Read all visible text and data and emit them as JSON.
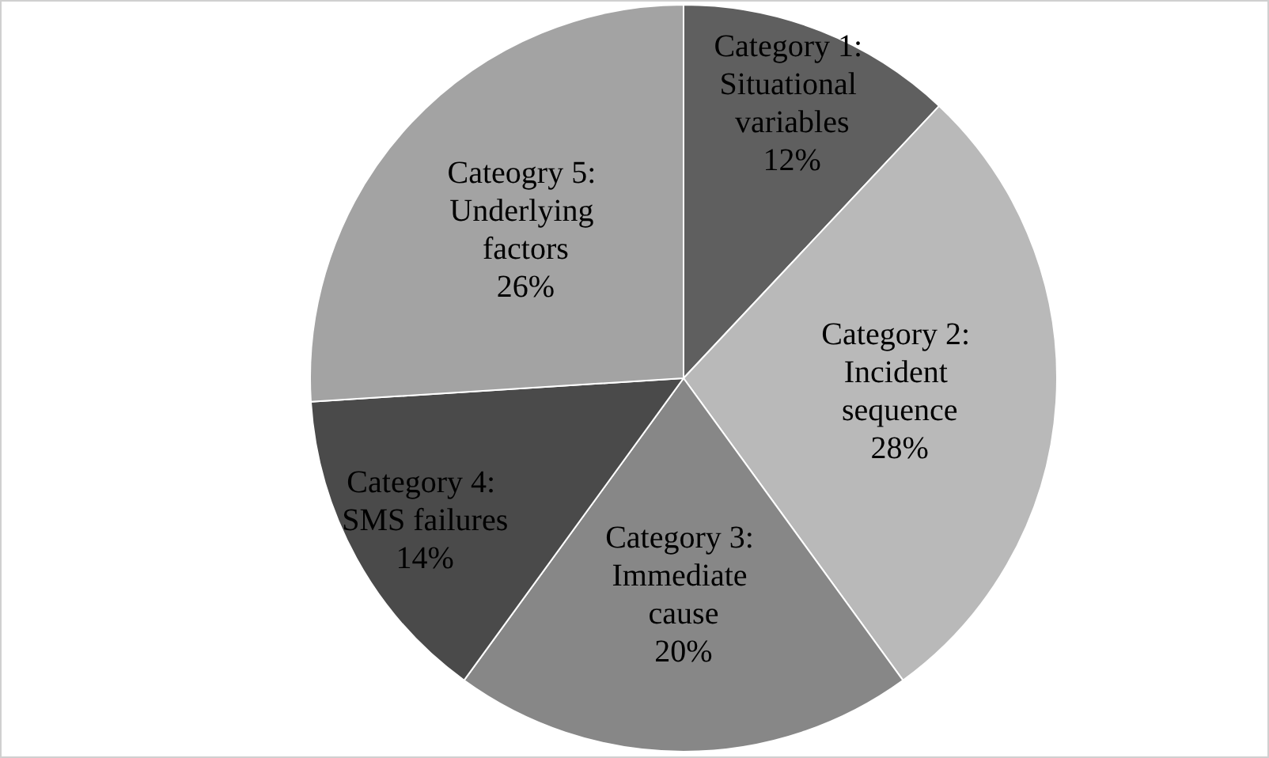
{
  "chart_data": {
    "type": "pie",
    "categories": [
      "Category 1: Situational variables",
      "Category 2: Incident sequence",
      "Category 3: Immediate cause",
      "Category 4: SMS failures",
      "Cateogry 5: Underlying factors"
    ],
    "values": [
      12,
      28,
      20,
      14,
      26
    ],
    "colors": [
      "#5f5f5f",
      "#b9b9b9",
      "#878787",
      "#4a4a4a",
      "#a3a3a3"
    ],
    "value_labels": [
      "12%",
      "28%",
      "20%",
      "14%",
      "26%"
    ],
    "legend": false
  }
}
